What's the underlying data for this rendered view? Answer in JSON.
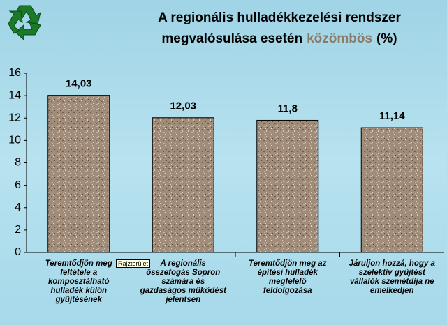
{
  "chart_data": {
    "type": "bar",
    "title": [
      {
        "text": "A regionális hulladékkezelési rendszer",
        "color": "#000000"
      },
      {
        "text": "megvalósulása esetén",
        "color": "#000000"
      },
      {
        "text": "közömbös",
        "color": "#8c7a6a"
      },
      {
        "text": "(%)",
        "color": "#000000"
      }
    ],
    "categories": [
      "Teremtődjön meg feltétele a komposztálható hulladék külön gyűjtésének",
      "A regionális összefogás Sopron számára és gazdaságos működést jelentsen",
      "Teremtődjön meg az építési hulladék megfelelő feldolgozása",
      "Járuljon hozzá, hogy a szelektív gyűjtést vállalók szemétdíja ne emelkedjen"
    ],
    "values": [
      14.03,
      12.03,
      11.8,
      11.14
    ],
    "value_labels": [
      "14,03",
      "12,03",
      "11,8",
      "11,14"
    ],
    "ylim": [
      0,
      16
    ],
    "yticks": [
      0,
      2,
      4,
      6,
      8,
      10,
      12,
      14,
      16
    ],
    "grid": false,
    "tooltip": "Rajzterület"
  }
}
